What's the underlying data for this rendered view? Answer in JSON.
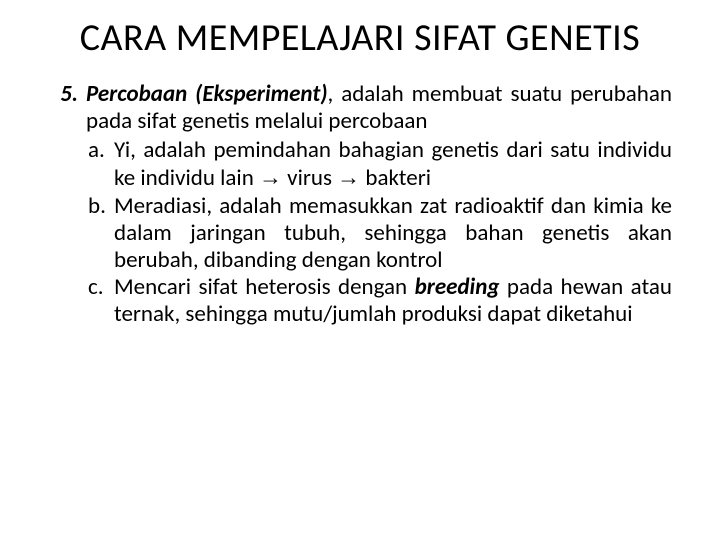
{
  "title": "CARA MEMPELAJARI SIFAT GENETIS",
  "item_number": "5.",
  "term": "Percobaan (Eksperiment)",
  "lead_text": ", adalah membuat suatu perubahan pada sifat genetis melalui percobaan",
  "sub": {
    "a": {
      "letter": "a.",
      "pre": "Yi, adalah pemindahan bahagian genetis dari satu individu ke individu lain ",
      "arrow1": "→",
      "mid": " virus ",
      "arrow2": "→",
      "post": " bakteri"
    },
    "b": {
      "letter": "b.",
      "text": "Meradiasi, adalah memasukkan zat radioaktif dan kimia ke dalam jaringan tubuh, sehingga bahan genetis akan berubah, dibanding dengan kontrol"
    },
    "c": {
      "letter": "c.",
      "pre": "Mencari sifat heterosis dengan ",
      "bold": "breeding",
      "post": " pada hewan atau ternak, sehingga mutu/jumlah produksi dapat diketahui"
    }
  },
  "colors": {
    "background": "#ffffff",
    "text": "#000000"
  },
  "typography": {
    "title_fontsize": 40,
    "body_fontsize": 24,
    "font_family": "Calibri"
  }
}
